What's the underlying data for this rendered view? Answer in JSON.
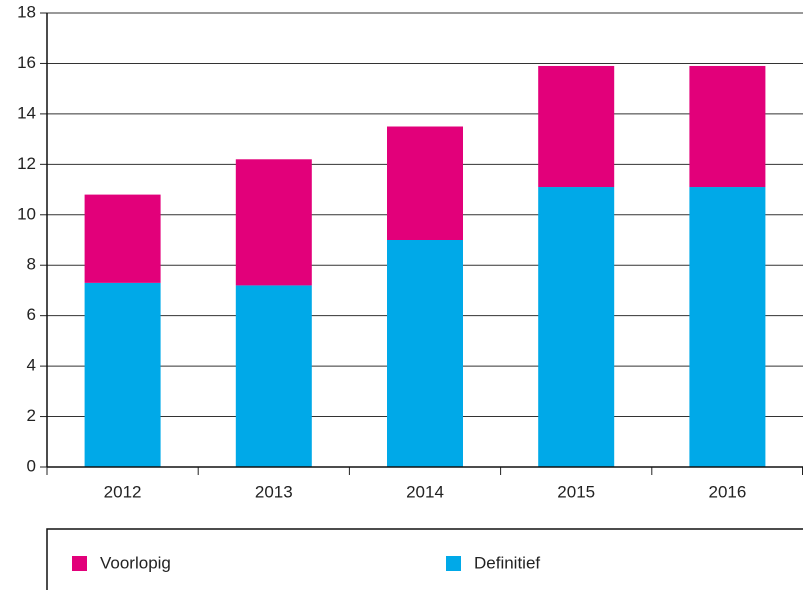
{
  "chart_data": {
    "type": "stacked-bar",
    "categories": [
      "2012",
      "2013",
      "2014",
      "2015",
      "2016"
    ],
    "series": [
      {
        "name": "Voorlopig",
        "color": "#e2007a",
        "values": [
          3.5,
          5.0,
          4.5,
          4.8,
          4.8
        ]
      },
      {
        "name": "Definitief",
        "color": "#00a9e8",
        "values": [
          7.3,
          7.2,
          9.0,
          11.1,
          11.1
        ]
      }
    ],
    "ylim": [
      0,
      18
    ],
    "yticks": [
      0,
      2,
      4,
      6,
      8,
      10,
      12,
      14,
      16,
      18
    ],
    "grid": true,
    "legend": "bottom"
  }
}
